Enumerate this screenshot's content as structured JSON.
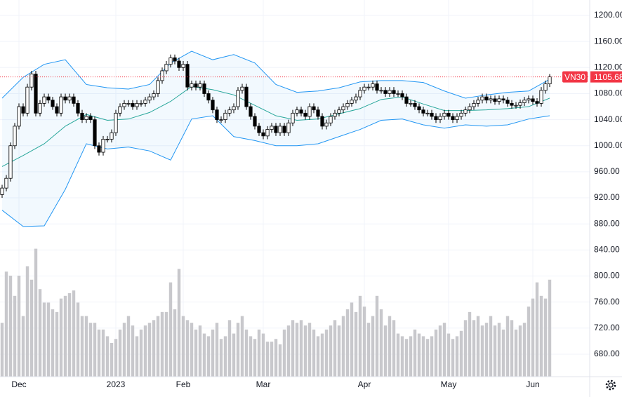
{
  "chart_data": {
    "type": "candlestick",
    "categories": [
      null,
      null,
      null,
      null,
      "Dec",
      null,
      null,
      null,
      null,
      null,
      null,
      null,
      null,
      null,
      null,
      null,
      null,
      null,
      null,
      null,
      null,
      null,
      null,
      null,
      null,
      null,
      null,
      "2023",
      null,
      null,
      null,
      null,
      null,
      null,
      null,
      null,
      null,
      null,
      null,
      null,
      null,
      null,
      null,
      "Feb",
      null,
      null,
      null,
      null,
      null,
      null,
      null,
      null,
      null,
      null,
      null,
      null,
      null,
      null,
      null,
      null,
      null,
      null,
      "Mar",
      null,
      null,
      null,
      null,
      null,
      null,
      null,
      null,
      null,
      null,
      null,
      null,
      null,
      null,
      null,
      null,
      null,
      null,
      null,
      null,
      null,
      null,
      null,
      "Apr",
      null,
      null,
      null,
      null,
      null,
      null,
      null,
      null,
      null,
      null,
      null,
      null,
      null,
      null,
      null,
      null,
      null,
      null,
      null,
      "May",
      null,
      null,
      null,
      null,
      null,
      null,
      null,
      null,
      null,
      null,
      null,
      null,
      null,
      null,
      null,
      null,
      null,
      null,
      null,
      "Jun",
      null,
      null,
      null,
      null
    ],
    "open": [
      925,
      935,
      950,
      1000,
      1030,
      1060,
      1050,
      1090,
      1110,
      1050,
      1065,
      1075,
      1070,
      1060,
      1050,
      1075,
      1070,
      1075,
      1065,
      1050,
      1040,
      1045,
      1040,
      1000,
      990,
      1010,
      1010,
      1020,
      1050,
      1060,
      1065,
      1065,
      1060,
      1065,
      1065,
      1070,
      1075,
      1080,
      1100,
      1115,
      1125,
      1135,
      1130,
      1120,
      1125,
      1090,
      1095,
      1090,
      1095,
      1080,
      1070,
      1055,
      1040,
      1040,
      1050,
      1055,
      1060,
      1085,
      1090,
      1060,
      1045,
      1030,
      1020,
      1015,
      1025,
      1030,
      1020,
      1030,
      1020,
      1035,
      1050,
      1055,
      1050,
      1045,
      1060,
      1055,
      1045,
      1030,
      1035,
      1045,
      1050,
      1055,
      1060,
      1065,
      1070,
      1075,
      1085,
      1090,
      1090,
      1095,
      1085,
      1085,
      1080,
      1085,
      1080,
      1080,
      1075,
      1065,
      1065,
      1060,
      1055,
      1050,
      1050,
      1045,
      1040,
      1045,
      1050,
      1045,
      1040,
      1045,
      1050,
      1055,
      1060,
      1065,
      1070,
      1075,
      1070,
      1072,
      1068,
      1072,
      1070,
      1065,
      1062,
      1062,
      1066,
      1070,
      1072,
      1068,
      1065,
      1085,
      1095
    ],
    "high": [
      940,
      955,
      1005,
      1035,
      1065,
      1065,
      1095,
      1115,
      1115,
      1070,
      1080,
      1080,
      1075,
      1065,
      1080,
      1080,
      1080,
      1080,
      1070,
      1055,
      1050,
      1050,
      1045,
      1005,
      1015,
      1015,
      1025,
      1055,
      1065,
      1070,
      1070,
      1070,
      1070,
      1070,
      1075,
      1080,
      1085,
      1105,
      1120,
      1130,
      1140,
      1140,
      1135,
      1130,
      1130,
      1100,
      1100,
      1100,
      1100,
      1085,
      1075,
      1060,
      1045,
      1055,
      1060,
      1065,
      1090,
      1095,
      1095,
      1065,
      1050,
      1035,
      1025,
      1030,
      1035,
      1035,
      1035,
      1035,
      1040,
      1055,
      1060,
      1060,
      1055,
      1065,
      1065,
      1060,
      1050,
      1040,
      1050,
      1055,
      1060,
      1065,
      1070,
      1075,
      1080,
      1090,
      1095,
      1095,
      1100,
      1100,
      1090,
      1090,
      1090,
      1090,
      1085,
      1085,
      1080,
      1070,
      1070,
      1065,
      1060,
      1055,
      1055,
      1050,
      1050,
      1055,
      1055,
      1050,
      1050,
      1055,
      1060,
      1065,
      1070,
      1075,
      1080,
      1080,
      1077,
      1077,
      1077,
      1077,
      1075,
      1070,
      1067,
      1071,
      1075,
      1077,
      1077,
      1073,
      1090,
      1100,
      1110
    ],
    "low": [
      920,
      930,
      945,
      995,
      1025,
      1045,
      1045,
      1085,
      1045,
      1045,
      1060,
      1065,
      1055,
      1045,
      1045,
      1065,
      1065,
      1060,
      1045,
      1035,
      1035,
      1035,
      995,
      985,
      985,
      1005,
      1005,
      1015,
      1045,
      1055,
      1060,
      1055,
      1055,
      1060,
      1060,
      1065,
      1070,
      1075,
      1095,
      1110,
      1120,
      1125,
      1115,
      1115,
      1085,
      1085,
      1085,
      1085,
      1075,
      1065,
      1050,
      1035,
      1035,
      1035,
      1045,
      1050,
      1055,
      1080,
      1055,
      1040,
      1025,
      1015,
      1010,
      1010,
      1020,
      1015,
      1015,
      1015,
      1015,
      1030,
      1045,
      1045,
      1040,
      1040,
      1050,
      1040,
      1025,
      1025,
      1030,
      1040,
      1045,
      1050,
      1055,
      1060,
      1065,
      1070,
      1080,
      1085,
      1085,
      1080,
      1080,
      1075,
      1075,
      1075,
      1075,
      1070,
      1060,
      1060,
      1055,
      1050,
      1045,
      1045,
      1040,
      1035,
      1035,
      1040,
      1040,
      1035,
      1035,
      1040,
      1045,
      1050,
      1055,
      1060,
      1065,
      1065,
      1065,
      1063,
      1063,
      1065,
      1060,
      1057,
      1057,
      1057,
      1061,
      1065,
      1063,
      1060,
      1060,
      1080,
      1090
    ],
    "close": [
      935,
      950,
      1000,
      1030,
      1060,
      1050,
      1090,
      1110,
      1050,
      1065,
      1075,
      1070,
      1060,
      1050,
      1075,
      1070,
      1075,
      1065,
      1050,
      1040,
      1045,
      1040,
      1000,
      990,
      1010,
      1010,
      1020,
      1050,
      1060,
      1065,
      1065,
      1060,
      1065,
      1065,
      1070,
      1075,
      1080,
      1100,
      1115,
      1125,
      1135,
      1130,
      1120,
      1125,
      1090,
      1095,
      1090,
      1095,
      1080,
      1070,
      1055,
      1040,
      1040,
      1050,
      1055,
      1060,
      1085,
      1090,
      1060,
      1045,
      1030,
      1020,
      1015,
      1025,
      1030,
      1020,
      1030,
      1020,
      1035,
      1050,
      1055,
      1050,
      1045,
      1060,
      1055,
      1045,
      1030,
      1035,
      1045,
      1050,
      1055,
      1060,
      1065,
      1070,
      1075,
      1085,
      1090,
      1090,
      1095,
      1085,
      1085,
      1080,
      1085,
      1080,
      1080,
      1075,
      1065,
      1065,
      1060,
      1055,
      1050,
      1050,
      1045,
      1040,
      1045,
      1050,
      1045,
      1040,
      1045,
      1050,
      1055,
      1060,
      1065,
      1070,
      1075,
      1070,
      1072,
      1068,
      1072,
      1070,
      1065,
      1062,
      1062,
      1066,
      1070,
      1072,
      1068,
      1065,
      1085,
      1095,
      1105.68
    ],
    "volume": [
      40,
      78,
      75,
      60,
      75,
      45,
      82,
      72,
      95,
      65,
      55,
      55,
      50,
      48,
      58,
      60,
      62,
      64,
      55,
      45,
      45,
      40,
      40,
      35,
      35,
      30,
      25,
      28,
      35,
      40,
      45,
      38,
      30,
      35,
      38,
      40,
      42,
      45,
      48,
      48,
      70,
      50,
      80,
      45,
      42,
      40,
      35,
      38,
      32,
      30,
      35,
      40,
      28,
      30,
      42,
      32,
      40,
      45,
      35,
      30,
      28,
      35,
      32,
      26,
      26,
      28,
      24,
      35,
      38,
      42,
      40,
      42,
      38,
      40,
      35,
      30,
      32,
      35,
      38,
      42,
      38,
      45,
      50,
      55,
      48,
      60,
      52,
      40,
      45,
      60,
      50,
      38,
      45,
      42,
      32,
      30,
      28,
      30,
      35,
      32,
      30,
      28,
      30,
      35,
      38,
      40,
      32,
      28,
      30,
      34,
      42,
      48,
      42,
      45,
      38,
      40,
      45,
      38,
      40,
      35,
      45,
      42,
      35,
      38,
      40,
      52,
      58,
      70,
      60,
      58,
      72
    ],
    "vlim": [
      0,
      100
    ],
    "bands": {
      "x": [
        0,
        5,
        10,
        15,
        20,
        25,
        30,
        35,
        40,
        45,
        50,
        55,
        60,
        65,
        70,
        75,
        80,
        85,
        90,
        95,
        100,
        105,
        110,
        115,
        120,
        125,
        130
      ],
      "upper": [
        1073,
        1105,
        1125,
        1132,
        1094,
        1089,
        1087,
        1094,
        1127,
        1145,
        1132,
        1140,
        1127,
        1094,
        1082,
        1084,
        1089,
        1098,
        1100,
        1100,
        1097,
        1084,
        1073,
        1078,
        1082,
        1084,
        1102
      ],
      "middle": [
        968,
        985,
        1003,
        1030,
        1048,
        1039,
        1041,
        1051,
        1068,
        1091,
        1086,
        1078,
        1062,
        1046,
        1039,
        1041,
        1049,
        1057,
        1071,
        1075,
        1064,
        1054,
        1054,
        1055,
        1057,
        1060,
        1073
      ],
      "lower": [
        901,
        876,
        877,
        933,
        1003,
        995,
        998,
        992,
        978,
        1041,
        1046,
        1014,
        1008,
        1000,
        1000,
        1003,
        1014,
        1025,
        1039,
        1041,
        1032,
        1027,
        1032,
        1030,
        1032,
        1041,
        1046
      ],
      "band_color": "#2196f3",
      "middle_color": "#26a69a"
    },
    "ylim": [
      645.5,
      1223.7
    ],
    "yticks": [
      {
        "value": 1200,
        "label": "1200.00"
      },
      {
        "value": 1160,
        "label": "1160.00"
      },
      {
        "value": 1120,
        "label": "1120.00"
      },
      {
        "value": 1080,
        "label": "1080.00"
      },
      {
        "value": 1040,
        "label": "1040.00"
      },
      {
        "value": 1000,
        "label": "1000.00"
      },
      {
        "value": 960,
        "label": "960.00"
      },
      {
        "value": 920,
        "label": "920.00"
      },
      {
        "value": 880,
        "label": "880.00"
      },
      {
        "value": 840,
        "label": "840.00"
      },
      {
        "value": 800,
        "label": "800.00"
      },
      {
        "value": 760,
        "label": "760.00"
      },
      {
        "value": 720,
        "label": "720.00"
      },
      {
        "value": 680,
        "label": "680.00"
      }
    ],
    "grid": true,
    "up_color": "#ffffff",
    "down_color": "#000000",
    "volume_color": "#c8c8cc",
    "last_price": {
      "symbol": "VN30",
      "value": 1105.68,
      "label": "1105.68",
      "color": "#f23645"
    }
  }
}
